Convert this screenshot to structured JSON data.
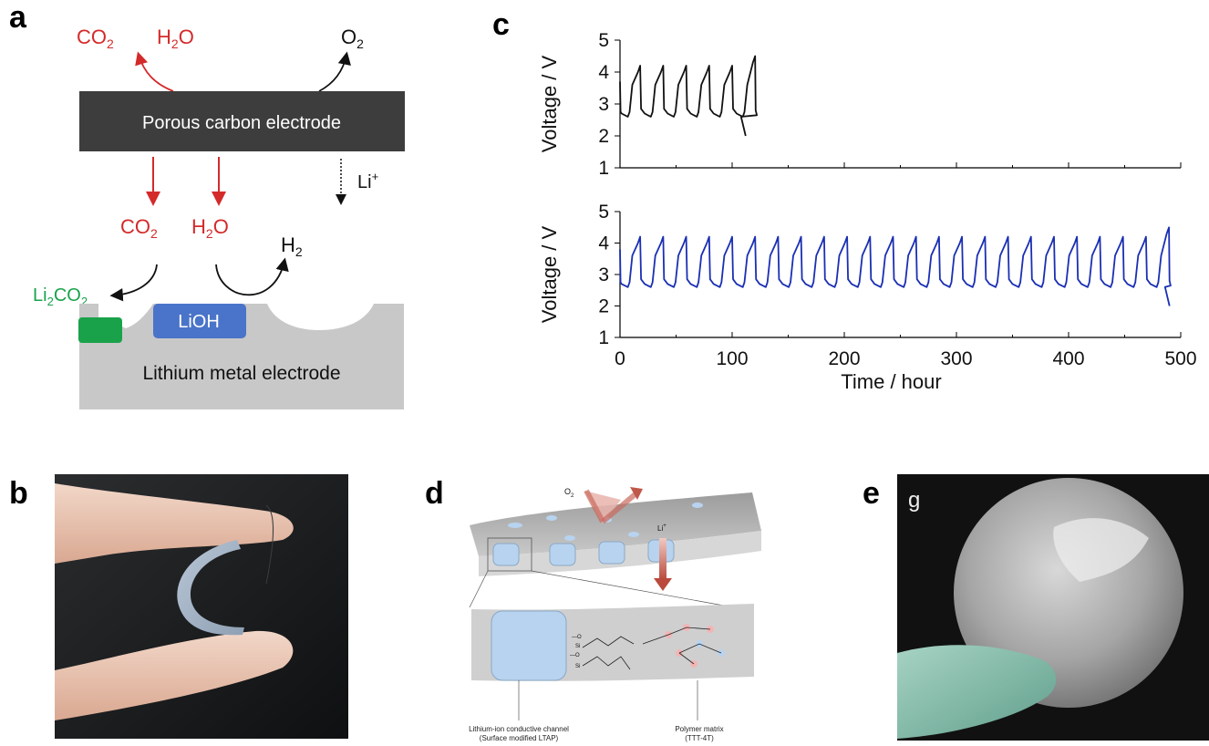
{
  "panels": {
    "a": {
      "letter": "a",
      "top_left_species": {
        "co2": "CO2",
        "h2o": "H2O"
      },
      "top_right_species": "O2",
      "carbon_electrode_label": "Porous carbon electrode",
      "li_ion_label": "Li+",
      "middle_species": {
        "co2": "CO2",
        "h2o": "H2O"
      },
      "h2_label": "H2",
      "li2co2_label": "Li2CO2",
      "lioh_label": "LiOH",
      "lithium_electrode_label": "Lithium metal electrode",
      "colors": {
        "red": "#d42a2a",
        "green": "#1aa24b",
        "blue_block": "#4a74c9",
        "dark_gray": "#3d3d3d",
        "light_gray": "#c8c8c8"
      }
    },
    "b": {
      "letter": "b"
    },
    "c": {
      "letter": "c"
    },
    "d": {
      "letter": "d",
      "o2_label": "O2",
      "li_label": "Li+",
      "caption_left_1": "Lithium-ion conductive channel",
      "caption_left_2": "(Surface modified LTAP)",
      "caption_right_1": "Polymer matrix",
      "caption_right_2": "(TTT-4T)"
    },
    "e": {
      "letter": "e",
      "corner_mark": "g"
    }
  },
  "chart_data": [
    {
      "type": "line",
      "ylabel": "Voltage / V",
      "ylim": [
        1,
        5
      ],
      "yticks": [
        "1",
        "2",
        "3",
        "4",
        "5"
      ],
      "xlim": [
        0,
        500
      ],
      "series": [
        {
          "color": "#111111",
          "cycles": 6,
          "period_hours": 20.5,
          "start_voltage": 3.7,
          "low_voltage": 2.6,
          "high_voltage": 4.2,
          "last_peak_voltage": 4.5,
          "end_time": 112,
          "end_voltage": 2.0
        }
      ]
    },
    {
      "type": "line",
      "ylabel": "Voltage / V",
      "xlabel": "Time / hour",
      "ylim": [
        1,
        5
      ],
      "yticks": [
        "1",
        "2",
        "3",
        "4",
        "5"
      ],
      "xlim": [
        0,
        500
      ],
      "xticks": [
        "0",
        "100",
        "200",
        "300",
        "400",
        "500"
      ],
      "series": [
        {
          "color": "#1a2fb3",
          "cycles": 24,
          "period_hours": 20.5,
          "start_voltage": 3.8,
          "low_voltage": 2.6,
          "high_voltage": 4.2,
          "last_peak_voltage": 4.5,
          "end_time": 490,
          "end_voltage": 2.0
        }
      ]
    }
  ]
}
